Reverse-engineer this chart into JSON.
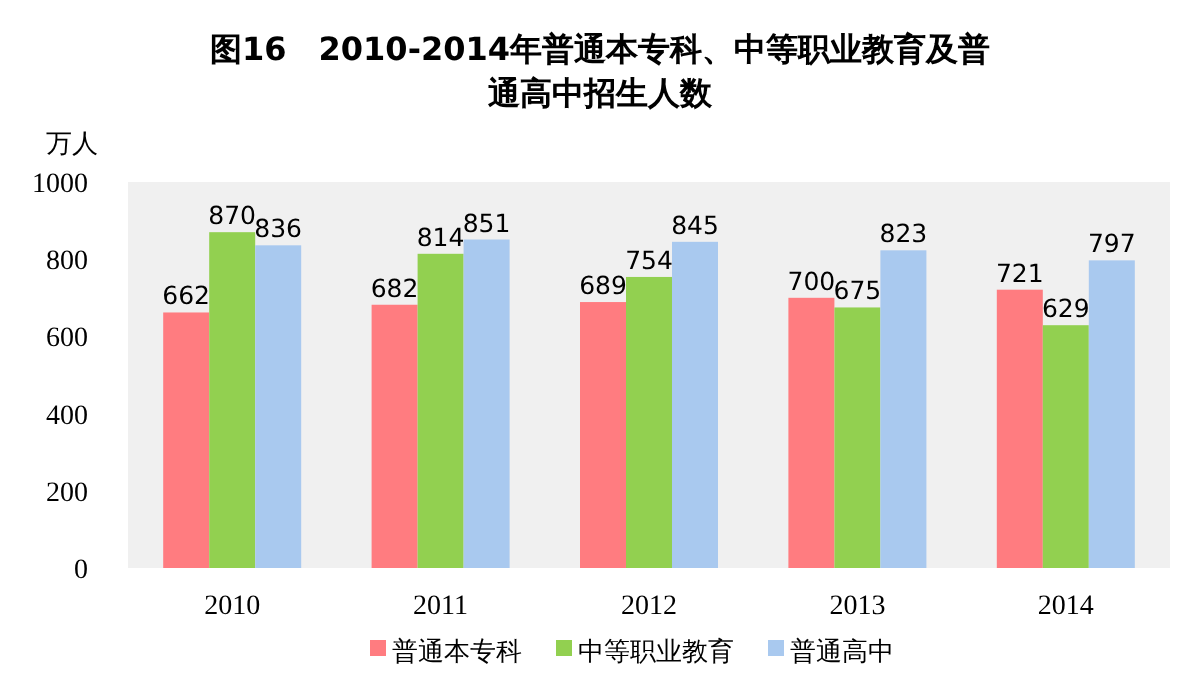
{
  "chart_data": {
    "type": "bar",
    "title": "图16　2010-2014年普通本专科、中等职业教育及普通高中招生人数",
    "ylabel": "万人",
    "categories": [
      "2010",
      "2011",
      "2012",
      "2013",
      "2014"
    ],
    "series": [
      {
        "name": "普通本专科",
        "color": "#ff7c80",
        "values": [
          662,
          682,
          689,
          700,
          721
        ]
      },
      {
        "name": "中等职业教育",
        "color": "#92d050",
        "values": [
          870,
          814,
          754,
          675,
          629
        ]
      },
      {
        "name": "普通高中",
        "color": "#a9c9ef",
        "values": [
          836,
          851,
          845,
          823,
          797
        ]
      }
    ],
    "ylim": [
      0,
      1000
    ],
    "yticks": [
      0,
      200,
      400,
      600,
      800,
      1000
    ],
    "data_labels": true,
    "legend": "bottom"
  }
}
